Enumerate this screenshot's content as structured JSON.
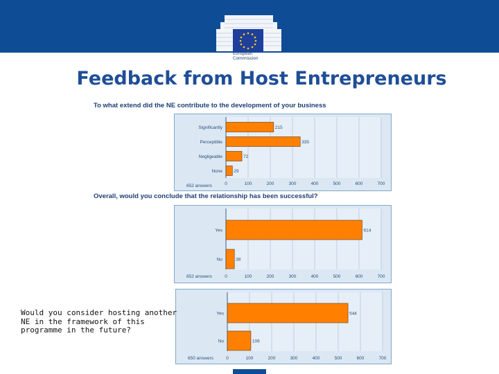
{
  "header": {
    "title": "Feedback from Host Entrepreneurs",
    "logo_text": "European\nCommission"
  },
  "side_text": "Would you consider hosting another NE in the framework of this programme in the future?",
  "colors": {
    "banner": "#0f4c96",
    "title": "#1f4e98",
    "bar": "#ff8000",
    "panel": "#dbe8f3"
  },
  "chart_data": [
    {
      "type": "bar",
      "orientation": "horizontal",
      "title": "To what extend did the NE contribute to the development of your business",
      "categories": [
        "Significantly",
        "Perceptible",
        "Negligeable",
        "None"
      ],
      "values": [
        215,
        335,
        72,
        29
      ],
      "note": "652 answers",
      "xlim": [
        0,
        700
      ],
      "xticks": [
        0,
        100,
        200,
        300,
        400,
        500,
        600,
        700
      ],
      "grid": true
    },
    {
      "type": "bar",
      "orientation": "horizontal",
      "title": "Overall, would you conclude that the relationship has been successful?",
      "categories": [
        "Yes",
        "No"
      ],
      "values": [
        614,
        38
      ],
      "note": "652 answers",
      "xlim": [
        0,
        700
      ],
      "xticks": [
        0,
        100,
        200,
        300,
        400,
        500,
        600,
        700
      ],
      "grid": true
    },
    {
      "type": "bar",
      "orientation": "horizontal",
      "title": "",
      "categories": [
        "Yes",
        "No"
      ],
      "values": [
        544,
        106
      ],
      "note": "650 answers",
      "xlim": [
        0,
        700
      ],
      "xticks": [
        0,
        100,
        200,
        300,
        400,
        500,
        600,
        700
      ],
      "grid": true
    }
  ]
}
